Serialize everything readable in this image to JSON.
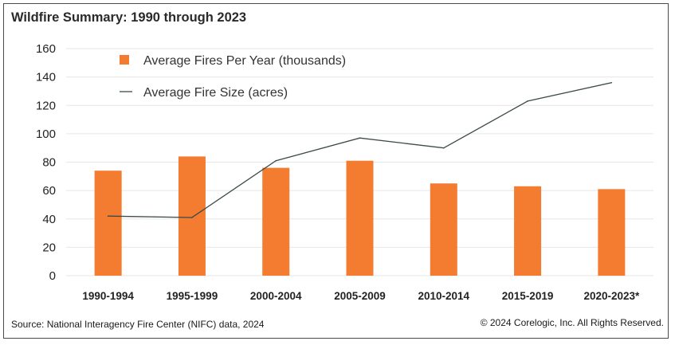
{
  "title": "Wildfire Summary: 1990 through 2023",
  "source": "Source: National Interagency Fire Center (NIFC) data, 2024",
  "copyright": "© 2024 Corelogic, Inc. All Rights Reserved.",
  "colors": {
    "bar": "#F47C30",
    "line": "#3D4A4A",
    "grid": "#E6E6E6",
    "text": "#222222"
  },
  "chart_data": {
    "type": "bar",
    "title": "Wildfire Summary: 1990 through 2023",
    "categories": [
      "1990-1994",
      "1995-1999",
      "2000-2004",
      "2005-2009",
      "2010-2014",
      "2015-2019",
      "2020-2023*"
    ],
    "series": [
      {
        "name": "Average Fires Per Year (thousands)",
        "kind": "bar",
        "values": [
          74,
          84,
          76,
          81,
          65,
          63,
          61
        ]
      },
      {
        "name": "Average Fire Size (acres)",
        "kind": "line",
        "values": [
          42,
          41,
          81,
          97,
          90,
          123,
          136
        ]
      }
    ],
    "ylim": [
      0,
      160
    ],
    "yticks": [
      0,
      20,
      40,
      60,
      80,
      100,
      120,
      140,
      160
    ],
    "grid": true,
    "xlabel": "",
    "ylabel": "",
    "legend_position": "top-left"
  }
}
